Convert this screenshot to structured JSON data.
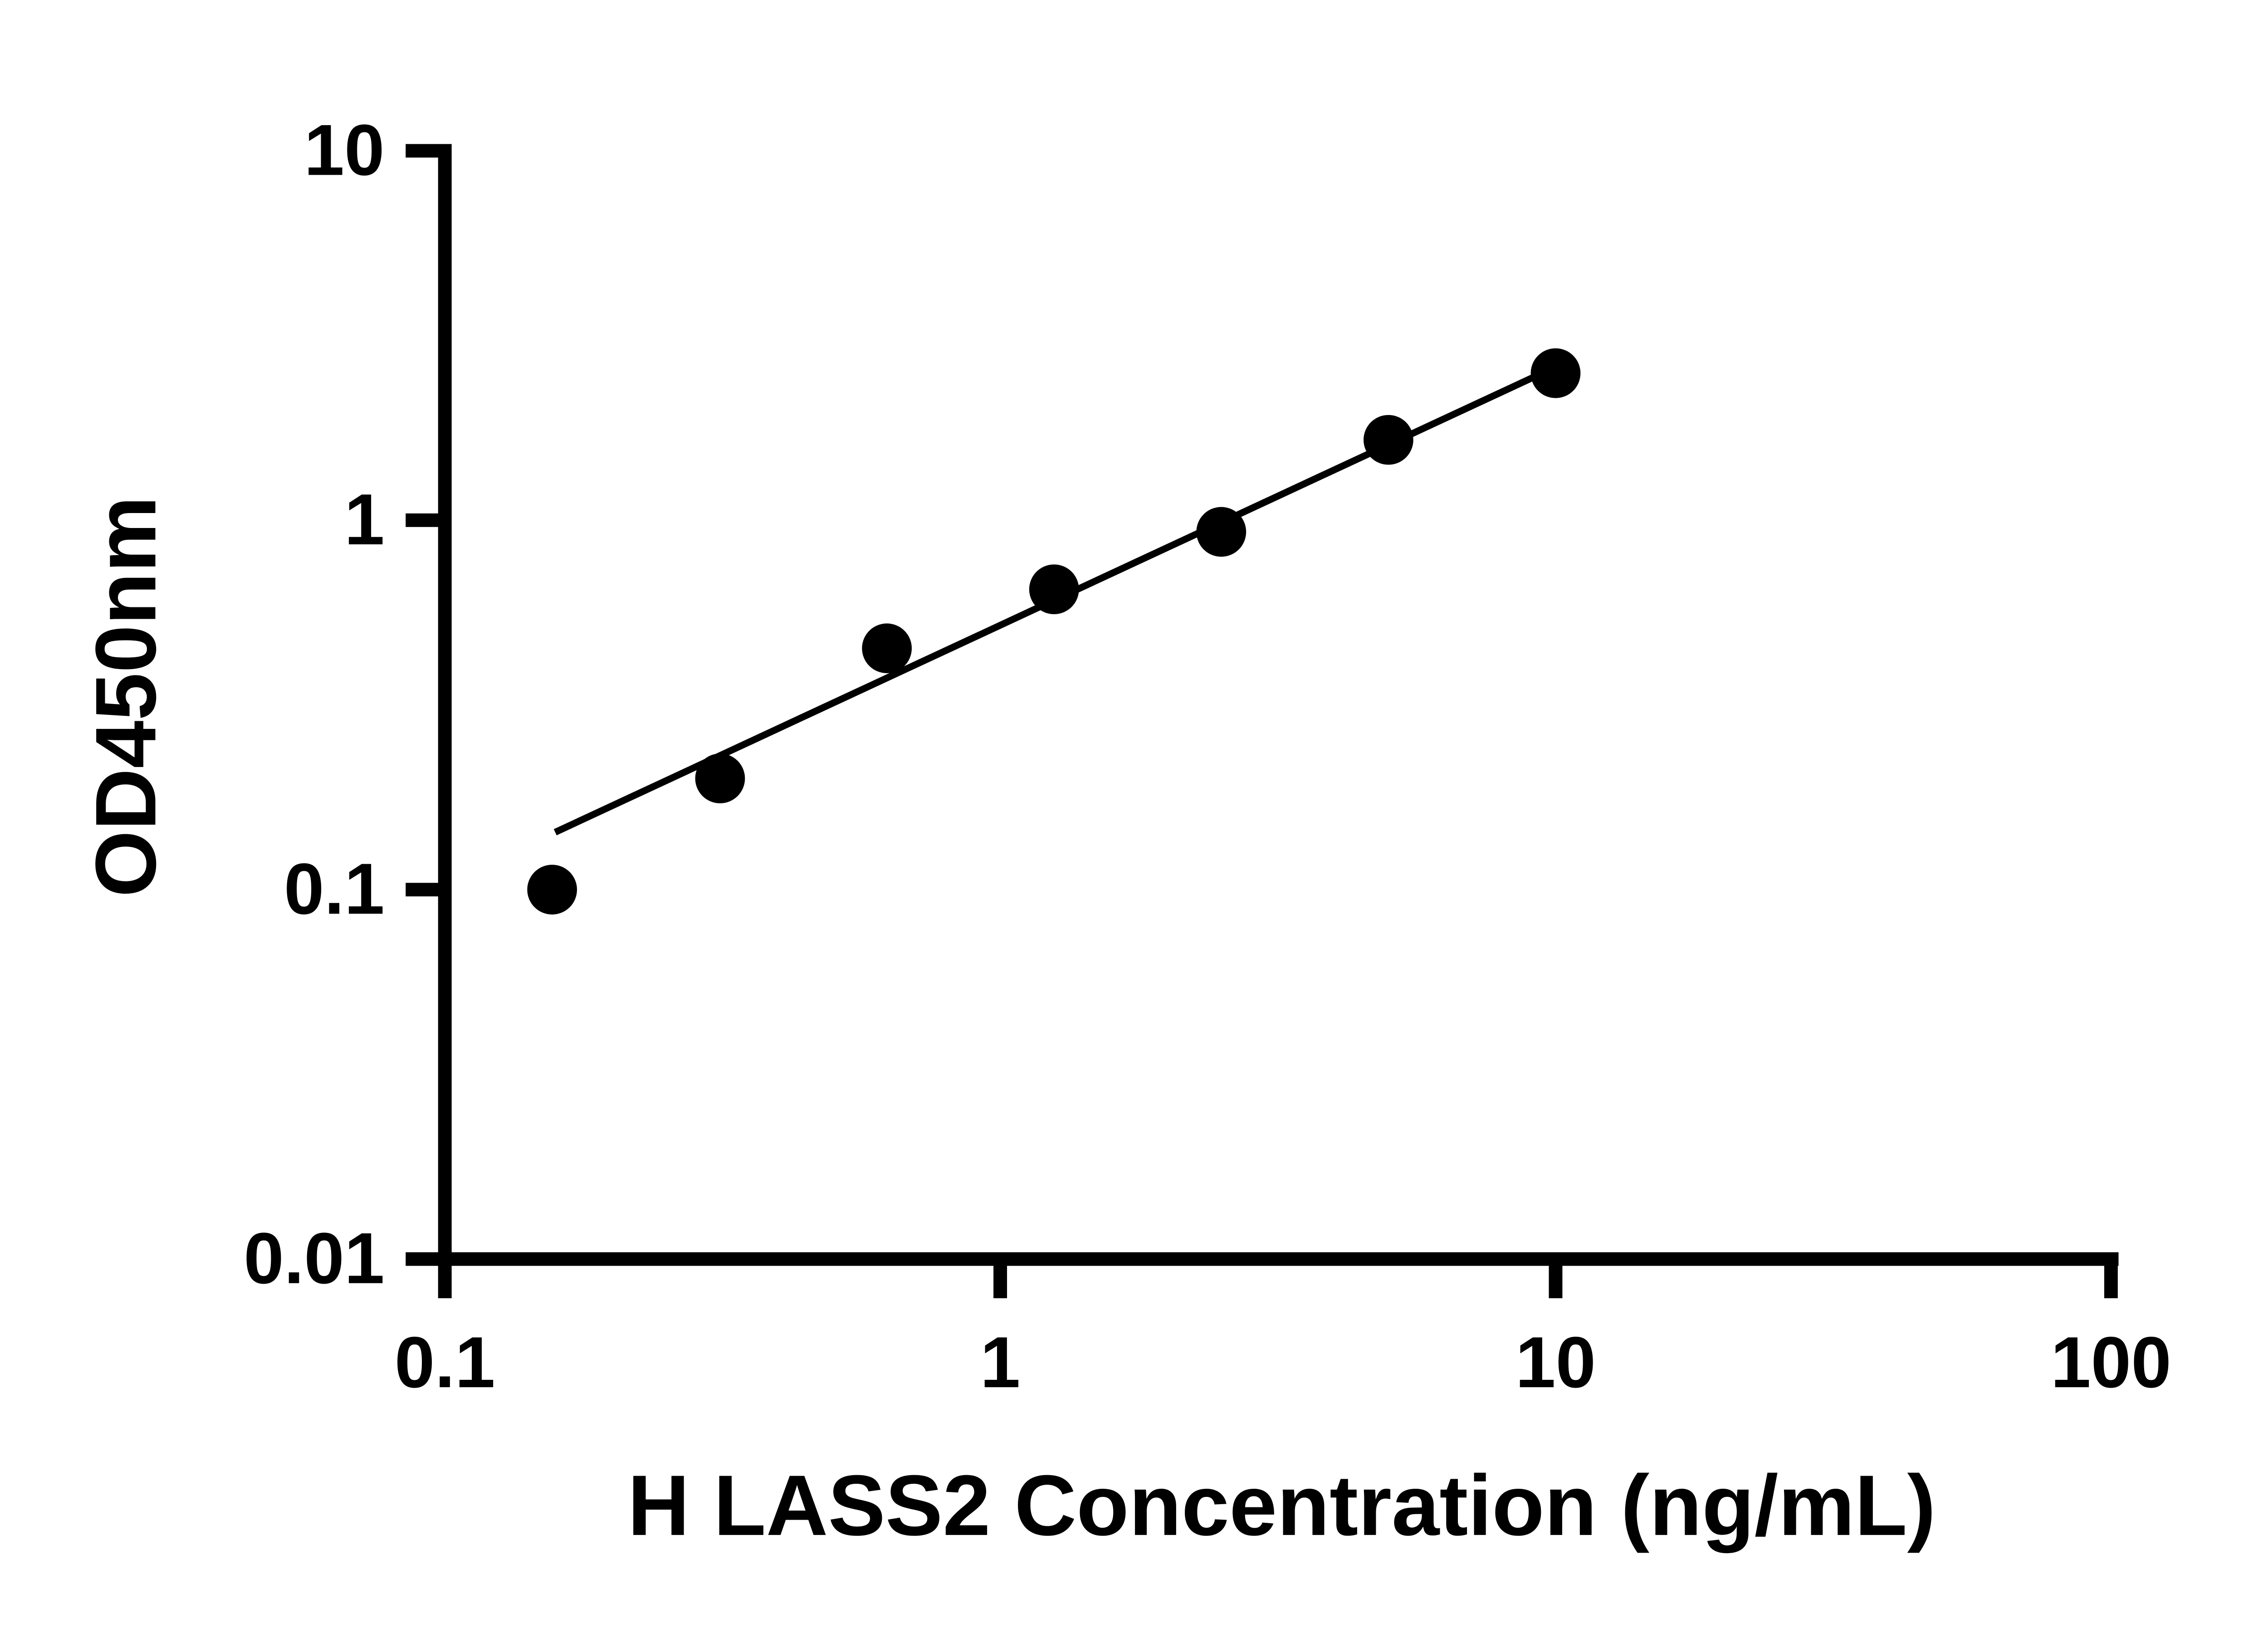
{
  "chart_data": {
    "type": "scatter",
    "title": "",
    "xlabel": "H LASS2 Concentration (ng/mL)",
    "ylabel": "OD450nm",
    "x_scale": "log",
    "y_scale": "log",
    "xlim": [
      0.1,
      100
    ],
    "ylim": [
      0.01,
      10
    ],
    "x_ticks": [
      "0.1",
      "1",
      "10",
      "100"
    ],
    "y_ticks": [
      "0.01",
      "0.1",
      "1",
      "10"
    ],
    "grid": false,
    "legend": null,
    "marker_color": "#000000",
    "line_color": "#000000",
    "axis_color": "#000000",
    "points": [
      {
        "x": 0.156,
        "y": 0.1
      },
      {
        "x": 0.313,
        "y": 0.2
      },
      {
        "x": 0.625,
        "y": 0.45
      },
      {
        "x": 1.25,
        "y": 0.65
      },
      {
        "x": 2.5,
        "y": 0.93
      },
      {
        "x": 5,
        "y": 1.65
      },
      {
        "x": 10,
        "y": 2.5
      }
    ],
    "trendline": {
      "x1": 0.158,
      "y1": 0.143,
      "x2": 10.5,
      "y2": 2.69
    }
  }
}
